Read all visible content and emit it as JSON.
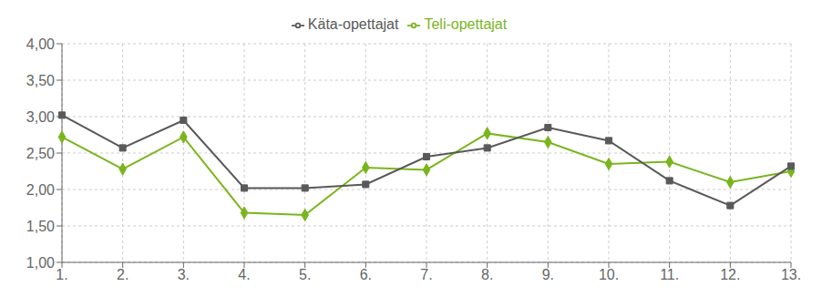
{
  "chart_data": {
    "type": "line",
    "categories": [
      "1.",
      "2.",
      "3.",
      "4.",
      "5.",
      "6.",
      "7.",
      "8.",
      "9.",
      "10.",
      "11.",
      "12.",
      "13."
    ],
    "series": [
      {
        "name": "Teli-opettajat",
        "color": "#7ab51d",
        "marker": "diamond",
        "values": [
          2.72,
          2.28,
          2.72,
          1.68,
          1.65,
          2.3,
          2.27,
          2.77,
          2.65,
          2.35,
          2.38,
          2.1,
          2.25
        ]
      },
      {
        "name": "Käta-opettajat",
        "color": "#595959",
        "marker": "square",
        "values": [
          3.02,
          2.57,
          2.95,
          2.02,
          2.02,
          2.07,
          2.45,
          2.57,
          2.85,
          2.67,
          2.12,
          1.78,
          2.32
        ]
      }
    ],
    "ylim": [
      1.0,
      4.0
    ],
    "yticks": [
      {
        "value": 1.0,
        "label": "1,00"
      },
      {
        "value": 1.5,
        "label": "1,50"
      },
      {
        "value": 2.0,
        "label": "2,00"
      },
      {
        "value": 2.5,
        "label": "2,50"
      },
      {
        "value": 3.0,
        "label": "3,00"
      },
      {
        "value": 3.5,
        "label": "3,50"
      },
      {
        "value": 4.0,
        "label": "4,00"
      }
    ],
    "grid": true,
    "legend": "top"
  }
}
